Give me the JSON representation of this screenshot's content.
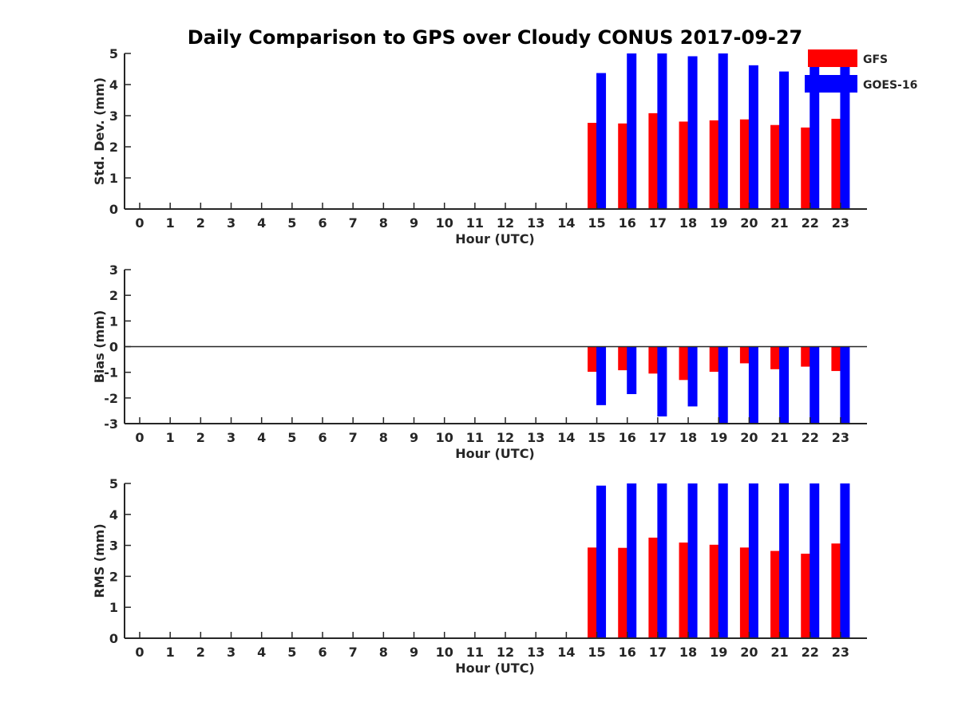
{
  "title": "Daily Comparison to GPS over Cloudy CONUS 2017-09-27",
  "legend": [
    {
      "name": "GFS",
      "color": "#ff0000"
    },
    {
      "name": "GOES-16",
      "color": "#0000ff"
    }
  ],
  "chart_data": [
    {
      "type": "bar",
      "ylabel": "Std. Dev. (mm)",
      "xlabel": "Hour (UTC)",
      "ylim": [
        0,
        5
      ],
      "yticks": [
        "0",
        "1",
        "2",
        "3",
        "4",
        "5"
      ],
      "categories": [
        "0",
        "1",
        "2",
        "3",
        "4",
        "5",
        "6",
        "7",
        "8",
        "9",
        "10",
        "11",
        "12",
        "13",
        "14",
        "15",
        "16",
        "17",
        "18",
        "19",
        "20",
        "21",
        "22",
        "23"
      ],
      "series": [
        {
          "name": "GFS",
          "color": "#ff0000",
          "values": [
            null,
            null,
            null,
            null,
            null,
            null,
            null,
            null,
            null,
            null,
            null,
            null,
            null,
            null,
            null,
            2.77,
            2.75,
            3.08,
            2.81,
            2.85,
            2.88,
            2.7,
            2.62,
            2.9
          ]
        },
        {
          "name": "GOES-16",
          "color": "#0000ff",
          "values": [
            null,
            null,
            null,
            null,
            null,
            null,
            null,
            null,
            null,
            null,
            null,
            null,
            null,
            null,
            null,
            4.37,
            5.0,
            5.0,
            4.91,
            5.0,
            4.62,
            4.42,
            4.6,
            4.7
          ]
        }
      ]
    },
    {
      "type": "bar",
      "ylabel": "Bias (mm)",
      "xlabel": "Hour (UTC)",
      "ylim": [
        -3,
        3
      ],
      "yticks": [
        "-3",
        "-2",
        "-1",
        "0",
        "1",
        "2",
        "3"
      ],
      "zero_line": true,
      "categories": [
        "0",
        "1",
        "2",
        "3",
        "4",
        "5",
        "6",
        "7",
        "8",
        "9",
        "10",
        "11",
        "12",
        "13",
        "14",
        "15",
        "16",
        "17",
        "18",
        "19",
        "20",
        "21",
        "22",
        "23"
      ],
      "series": [
        {
          "name": "GFS",
          "color": "#ff0000",
          "values": [
            null,
            null,
            null,
            null,
            null,
            null,
            null,
            null,
            null,
            null,
            null,
            null,
            null,
            null,
            null,
            -0.98,
            -0.92,
            -1.05,
            -1.3,
            -0.98,
            -0.65,
            -0.88,
            -0.78,
            -0.95
          ]
        },
        {
          "name": "GOES-16",
          "color": "#0000ff",
          "values": [
            null,
            null,
            null,
            null,
            null,
            null,
            null,
            null,
            null,
            null,
            null,
            null,
            null,
            null,
            null,
            -2.28,
            -1.85,
            -2.72,
            -2.33,
            -3.0,
            -3.0,
            -3.0,
            -3.0,
            -3.0
          ]
        }
      ]
    },
    {
      "type": "bar",
      "ylabel": "RMS (mm)",
      "xlabel": "Hour (UTC)",
      "ylim": [
        0,
        5
      ],
      "yticks": [
        "0",
        "1",
        "2",
        "3",
        "4",
        "5"
      ],
      "categories": [
        "0",
        "1",
        "2",
        "3",
        "4",
        "5",
        "6",
        "7",
        "8",
        "9",
        "10",
        "11",
        "12",
        "13",
        "14",
        "15",
        "16",
        "17",
        "18",
        "19",
        "20",
        "21",
        "22",
        "23"
      ],
      "series": [
        {
          "name": "GFS",
          "color": "#ff0000",
          "values": [
            null,
            null,
            null,
            null,
            null,
            null,
            null,
            null,
            null,
            null,
            null,
            null,
            null,
            null,
            null,
            2.93,
            2.92,
            3.25,
            3.09,
            3.02,
            2.93,
            2.82,
            2.73,
            3.06
          ]
        },
        {
          "name": "GOES-16",
          "color": "#0000ff",
          "values": [
            null,
            null,
            null,
            null,
            null,
            null,
            null,
            null,
            null,
            null,
            null,
            null,
            null,
            null,
            null,
            4.93,
            5.0,
            5.0,
            5.0,
            5.0,
            5.0,
            5.0,
            5.0,
            5.0
          ]
        }
      ]
    }
  ]
}
